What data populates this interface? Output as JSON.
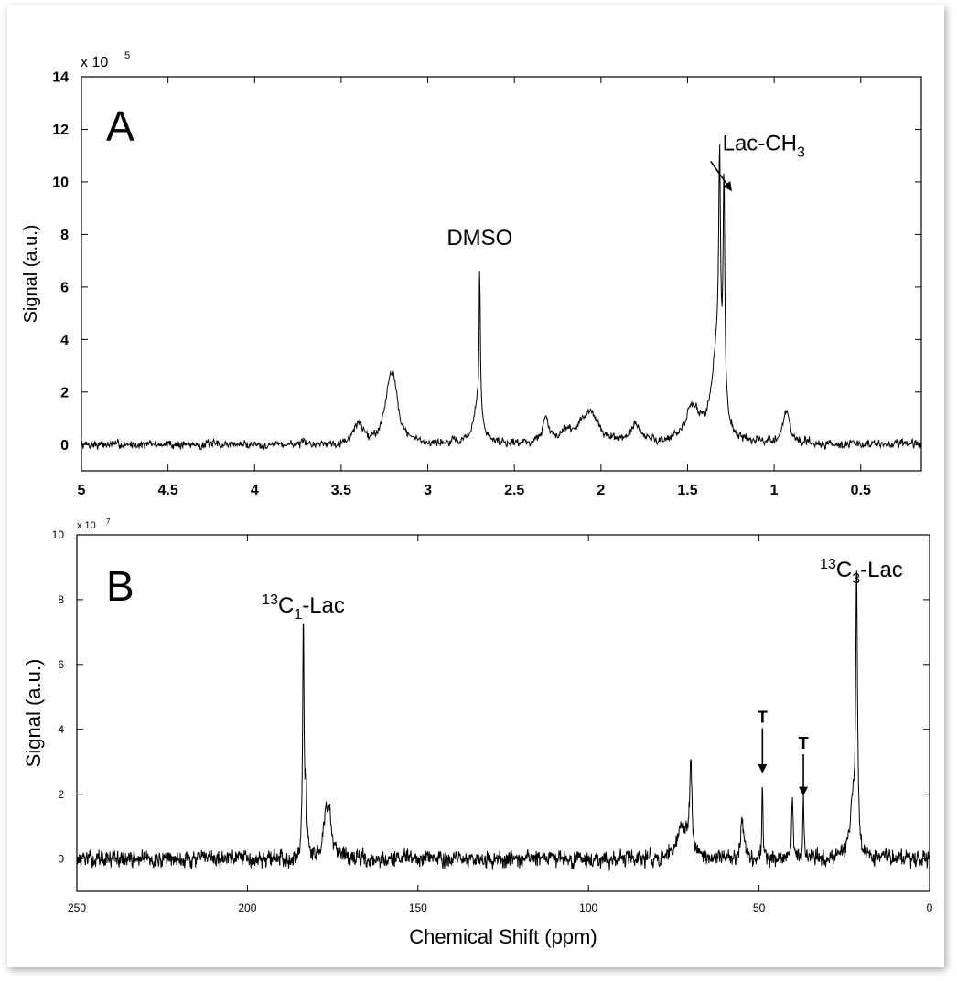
{
  "chart_data": [
    {
      "type": "line",
      "panel_label": "A",
      "title": "",
      "xlabel": "",
      "ylabel": "Signal (a.u.)",
      "y_multiplier": "x 10",
      "y_exponent": "5",
      "xlim": [
        5,
        0.15
      ],
      "ylim": [
        -1,
        14
      ],
      "x_reversed": true,
      "xticks": [
        5,
        4.5,
        4,
        3.5,
        3,
        2.5,
        2,
        1.5,
        1,
        0.5
      ],
      "xtick_labels": [
        "5",
        "4.5",
        "4",
        "3.5",
        "3",
        "2.5",
        "2",
        "1.5",
        "1",
        "0.5"
      ],
      "yticks": [
        0,
        2,
        4,
        6,
        8,
        10,
        12,
        14
      ],
      "ytick_labels": [
        "0",
        "2",
        "4",
        "6",
        "8",
        "10",
        "12",
        "14"
      ],
      "noise_amplitude": 0.18,
      "peaks": [
        {
          "x": 3.4,
          "height": 0.8,
          "width": 0.03
        },
        {
          "x": 3.22,
          "height": 2.0,
          "width": 0.035
        },
        {
          "x": 3.19,
          "height": 1.2,
          "width": 0.03
        },
        {
          "x": 2.71,
          "height": 1.5,
          "width": 0.03
        },
        {
          "x": 2.7,
          "height": 5.5,
          "width": 0.004
        },
        {
          "x": 2.32,
          "height": 0.9,
          "width": 0.02
        },
        {
          "x": 2.2,
          "height": 0.4,
          "width": 0.05
        },
        {
          "x": 2.07,
          "height": 1.2,
          "width": 0.06
        },
        {
          "x": 1.8,
          "height": 0.6,
          "width": 0.04
        },
        {
          "x": 1.47,
          "height": 1.3,
          "width": 0.05
        },
        {
          "x": 1.33,
          "height": 3.5,
          "width": 0.035
        },
        {
          "x": 1.315,
          "height": 8.0,
          "width": 0.006
        },
        {
          "x": 1.29,
          "height": 8.5,
          "width": 0.006
        },
        {
          "x": 0.93,
          "height": 1.2,
          "width": 0.025
        }
      ],
      "annotations": [
        {
          "text": "DMSO",
          "x": 2.7,
          "y": 7.6
        },
        {
          "text": "Lac-CH",
          "subscript": "3",
          "x": 1.06,
          "y": 11.2,
          "arrow_to": [
            1.25,
            9.7
          ]
        }
      ]
    },
    {
      "type": "line",
      "panel_label": "B",
      "title": "",
      "xlabel": "Chemical Shift (ppm)",
      "ylabel": "Signal (a.u.)",
      "y_multiplier": "x 10",
      "y_exponent": "7",
      "xlim": [
        250,
        0
      ],
      "ylim": [
        -1,
        10
      ],
      "x_reversed": true,
      "xticks": [
        250,
        200,
        150,
        100,
        50,
        0
      ],
      "xtick_labels": [
        "250",
        "200",
        "150",
        "100",
        "50",
        "0"
      ],
      "yticks": [
        0,
        2,
        4,
        6,
        8,
        10
      ],
      "ytick_labels": [
        "0",
        "2",
        "4",
        "6",
        "8",
        "10"
      ],
      "noise_amplitude": 0.28,
      "peaks": [
        {
          "x": 183.6,
          "height": 7.3,
          "width": 0.25
        },
        {
          "x": 182.8,
          "height": 2.0,
          "width": 0.3
        },
        {
          "x": 177.0,
          "height": 1.5,
          "width": 0.8
        },
        {
          "x": 175.8,
          "height": 1.0,
          "width": 0.6
        },
        {
          "x": 72.5,
          "height": 1.1,
          "width": 1.5
        },
        {
          "x": 70.0,
          "height": 2.8,
          "width": 0.4
        },
        {
          "x": 55.0,
          "height": 1.3,
          "width": 0.5
        },
        {
          "x": 49.0,
          "height": 2.2,
          "width": 0.2
        },
        {
          "x": 40.2,
          "height": 2.1,
          "width": 0.25
        },
        {
          "x": 37.0,
          "height": 1.8,
          "width": 0.2
        },
        {
          "x": 21.4,
          "height": 8.3,
          "width": 0.3
        },
        {
          "x": 22.5,
          "height": 1.6,
          "width": 1.0
        }
      ],
      "annotations": [
        {
          "text": "C",
          "superscript": "13",
          "subscript": "1",
          "suffix": "-Lac",
          "x": 183.6,
          "y": 7.6
        },
        {
          "text": "C",
          "superscript": "13",
          "subscript": "3",
          "suffix": "-Lac",
          "x": 20.0,
          "y": 8.7
        },
        {
          "text": "T",
          "x": 49.0,
          "y": 4.2,
          "arrow_to": [
            49.0,
            2.7
          ]
        },
        {
          "text": "T",
          "x": 37.0,
          "y": 3.4,
          "arrow_to": [
            37.0,
            2.0
          ]
        }
      ]
    }
  ]
}
